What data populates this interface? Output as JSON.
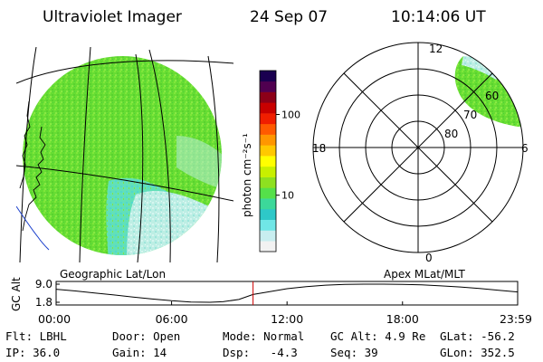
{
  "header": {
    "instrument": "Ultraviolet Imager",
    "date": "24 Sep 07",
    "time": "10:14:06 UT"
  },
  "colorbar": {
    "unit_label": "photon cm⁻²s⁻¹",
    "ticks": [
      "100",
      "10"
    ],
    "tick_values": [
      100,
      10
    ],
    "range": [
      2,
      350
    ],
    "scale": "log",
    "colors": [
      "#f2f2f2",
      "#c8eef0",
      "#70e6e6",
      "#2ec8c8",
      "#3cd89a",
      "#55e04a",
      "#8ee020",
      "#c8f000",
      "#ffff00",
      "#ffc800",
      "#ff9600",
      "#ff5a00",
      "#f01e00",
      "#c80000",
      "#8c0018",
      "#500050",
      "#1a0050"
    ]
  },
  "left_map": {
    "caption": "Geographic Lat/Lon",
    "fill_color": "#66dd33",
    "light_color": "#b8eedd"
  },
  "right_map": {
    "caption": "Apex MLat/MLT",
    "mlt_labels": [
      "12",
      "18",
      "6",
      "0"
    ],
    "mlat_labels": [
      "60",
      "70",
      "80"
    ],
    "fill_color": "#66dd33"
  },
  "chart_data": {
    "type": "line",
    "ylabel": "GC Alt",
    "yticks": [
      "9.0",
      "1.8"
    ],
    "ylim": [
      1.8,
      9.0
    ],
    "xticks": [
      "00:00",
      "06:00",
      "12:00",
      "18:00",
      "23:59"
    ],
    "x": [
      "00:00",
      "01:00",
      "02:00",
      "03:00",
      "04:00",
      "05:00",
      "06:00",
      "07:00",
      "08:00",
      "08:40",
      "09:30",
      "10:14",
      "11:00",
      "12:00",
      "13:00",
      "14:00",
      "15:00",
      "16:00",
      "17:00",
      "18:00",
      "19:00",
      "20:00",
      "21:00",
      "22:00",
      "23:00",
      "23:59"
    ],
    "values": [
      7.0,
      6.3,
      5.5,
      4.7,
      3.9,
      3.1,
      2.4,
      1.9,
      1.8,
      2.0,
      2.9,
      4.9,
      5.9,
      7.2,
      8.0,
      8.6,
      8.9,
      9.0,
      9.0,
      8.9,
      8.7,
      8.3,
      7.9,
      7.3,
      6.6,
      5.9
    ],
    "current_time": "10:14",
    "marker_color": "#cc0000"
  },
  "status": {
    "filter": "Flt: LBHL",
    "ip": "IP: 36.0",
    "door": "Door: Open",
    "gain": "Gain: 14",
    "mode": "Mode: Normal",
    "dsp": "Dsp:   -4.3",
    "gc_alt": "GC Alt: 4.9 Re",
    "seq": "Seq: 39",
    "glat": "GLat: -56.2",
    "glon": "GLon: 352.5"
  }
}
